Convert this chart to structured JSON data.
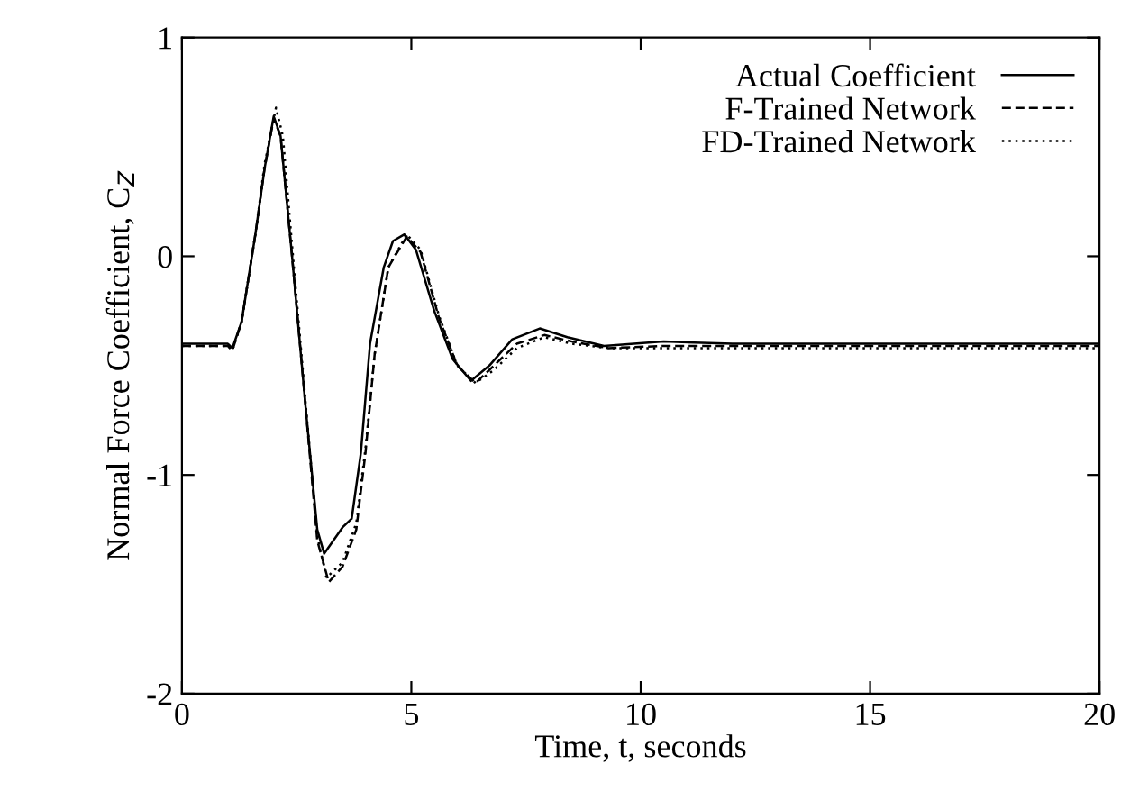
{
  "chart_data": {
    "type": "line",
    "xlabel": "Time, t, seconds",
    "ylabel": "Normal Force Coefficient, C$_{Z}$",
    "xlim": [
      0,
      20
    ],
    "ylim": [
      -2,
      1
    ],
    "xticks": [
      0,
      5,
      10,
      15,
      20
    ],
    "yticks": [
      -2,
      -1,
      0,
      1
    ],
    "grid": false,
    "legend": "top right",
    "marker": "none",
    "series": [
      {
        "name": "Actual Coefficient",
        "color": "#000000",
        "line_style": "solid",
        "x": [
          0,
          1.0,
          1.1,
          1.3,
          1.6,
          1.8,
          2.0,
          2.15,
          2.4,
          2.7,
          2.95,
          3.1,
          3.3,
          3.5,
          3.7,
          3.9,
          4.1,
          4.4,
          4.6,
          4.85,
          5.1,
          5.5,
          5.9,
          6.3,
          6.7,
          7.2,
          7.8,
          8.4,
          9.2,
          10.5,
          12,
          20
        ],
        "values": [
          -0.4,
          -0.4,
          -0.42,
          -0.3,
          0.1,
          0.4,
          0.64,
          0.55,
          0.0,
          -0.7,
          -1.25,
          -1.36,
          -1.3,
          -1.24,
          -1.2,
          -0.9,
          -0.4,
          -0.05,
          0.07,
          0.1,
          0.03,
          -0.25,
          -0.47,
          -0.57,
          -0.5,
          -0.38,
          -0.33,
          -0.37,
          -0.41,
          -0.39,
          -0.4,
          -0.4
        ]
      },
      {
        "name": "F-Trained Network",
        "color": "#000000",
        "line_style": "dashed",
        "x": [
          0,
          1.0,
          1.1,
          1.3,
          1.6,
          1.8,
          2.0,
          2.15,
          2.4,
          2.7,
          2.95,
          3.2,
          3.5,
          3.8,
          4.0,
          4.2,
          4.5,
          4.9,
          5.2,
          5.6,
          6.0,
          6.4,
          6.8,
          7.3,
          7.9,
          8.5,
          9.3,
          10.5,
          12,
          20
        ],
        "values": [
          -0.41,
          -0.41,
          -0.43,
          -0.3,
          0.1,
          0.4,
          0.63,
          0.55,
          0.0,
          -0.7,
          -1.3,
          -1.49,
          -1.42,
          -1.25,
          -0.9,
          -0.45,
          -0.05,
          0.09,
          0.02,
          -0.28,
          -0.5,
          -0.58,
          -0.5,
          -0.4,
          -0.36,
          -0.39,
          -0.42,
          -0.41,
          -0.41,
          -0.41
        ]
      },
      {
        "name": "FD-Trained Network",
        "color": "#000000",
        "line_style": "dotted",
        "x": [
          0,
          1.0,
          1.1,
          1.3,
          1.6,
          1.8,
          2.05,
          2.2,
          2.4,
          2.7,
          2.95,
          3.15,
          3.5,
          3.8,
          4.0,
          4.2,
          4.5,
          4.9,
          5.2,
          5.6,
          6.0,
          6.4,
          6.8,
          7.3,
          7.9,
          8.5,
          9.3,
          10.5,
          12,
          20
        ],
        "values": [
          -0.41,
          -0.41,
          -0.43,
          -0.3,
          0.1,
          0.42,
          0.68,
          0.55,
          0.05,
          -0.68,
          -1.28,
          -1.47,
          -1.4,
          -1.22,
          -0.88,
          -0.45,
          -0.05,
          0.1,
          0.03,
          -0.27,
          -0.5,
          -0.58,
          -0.52,
          -0.42,
          -0.37,
          -0.4,
          -0.42,
          -0.42,
          -0.42,
          -0.42
        ]
      }
    ]
  }
}
